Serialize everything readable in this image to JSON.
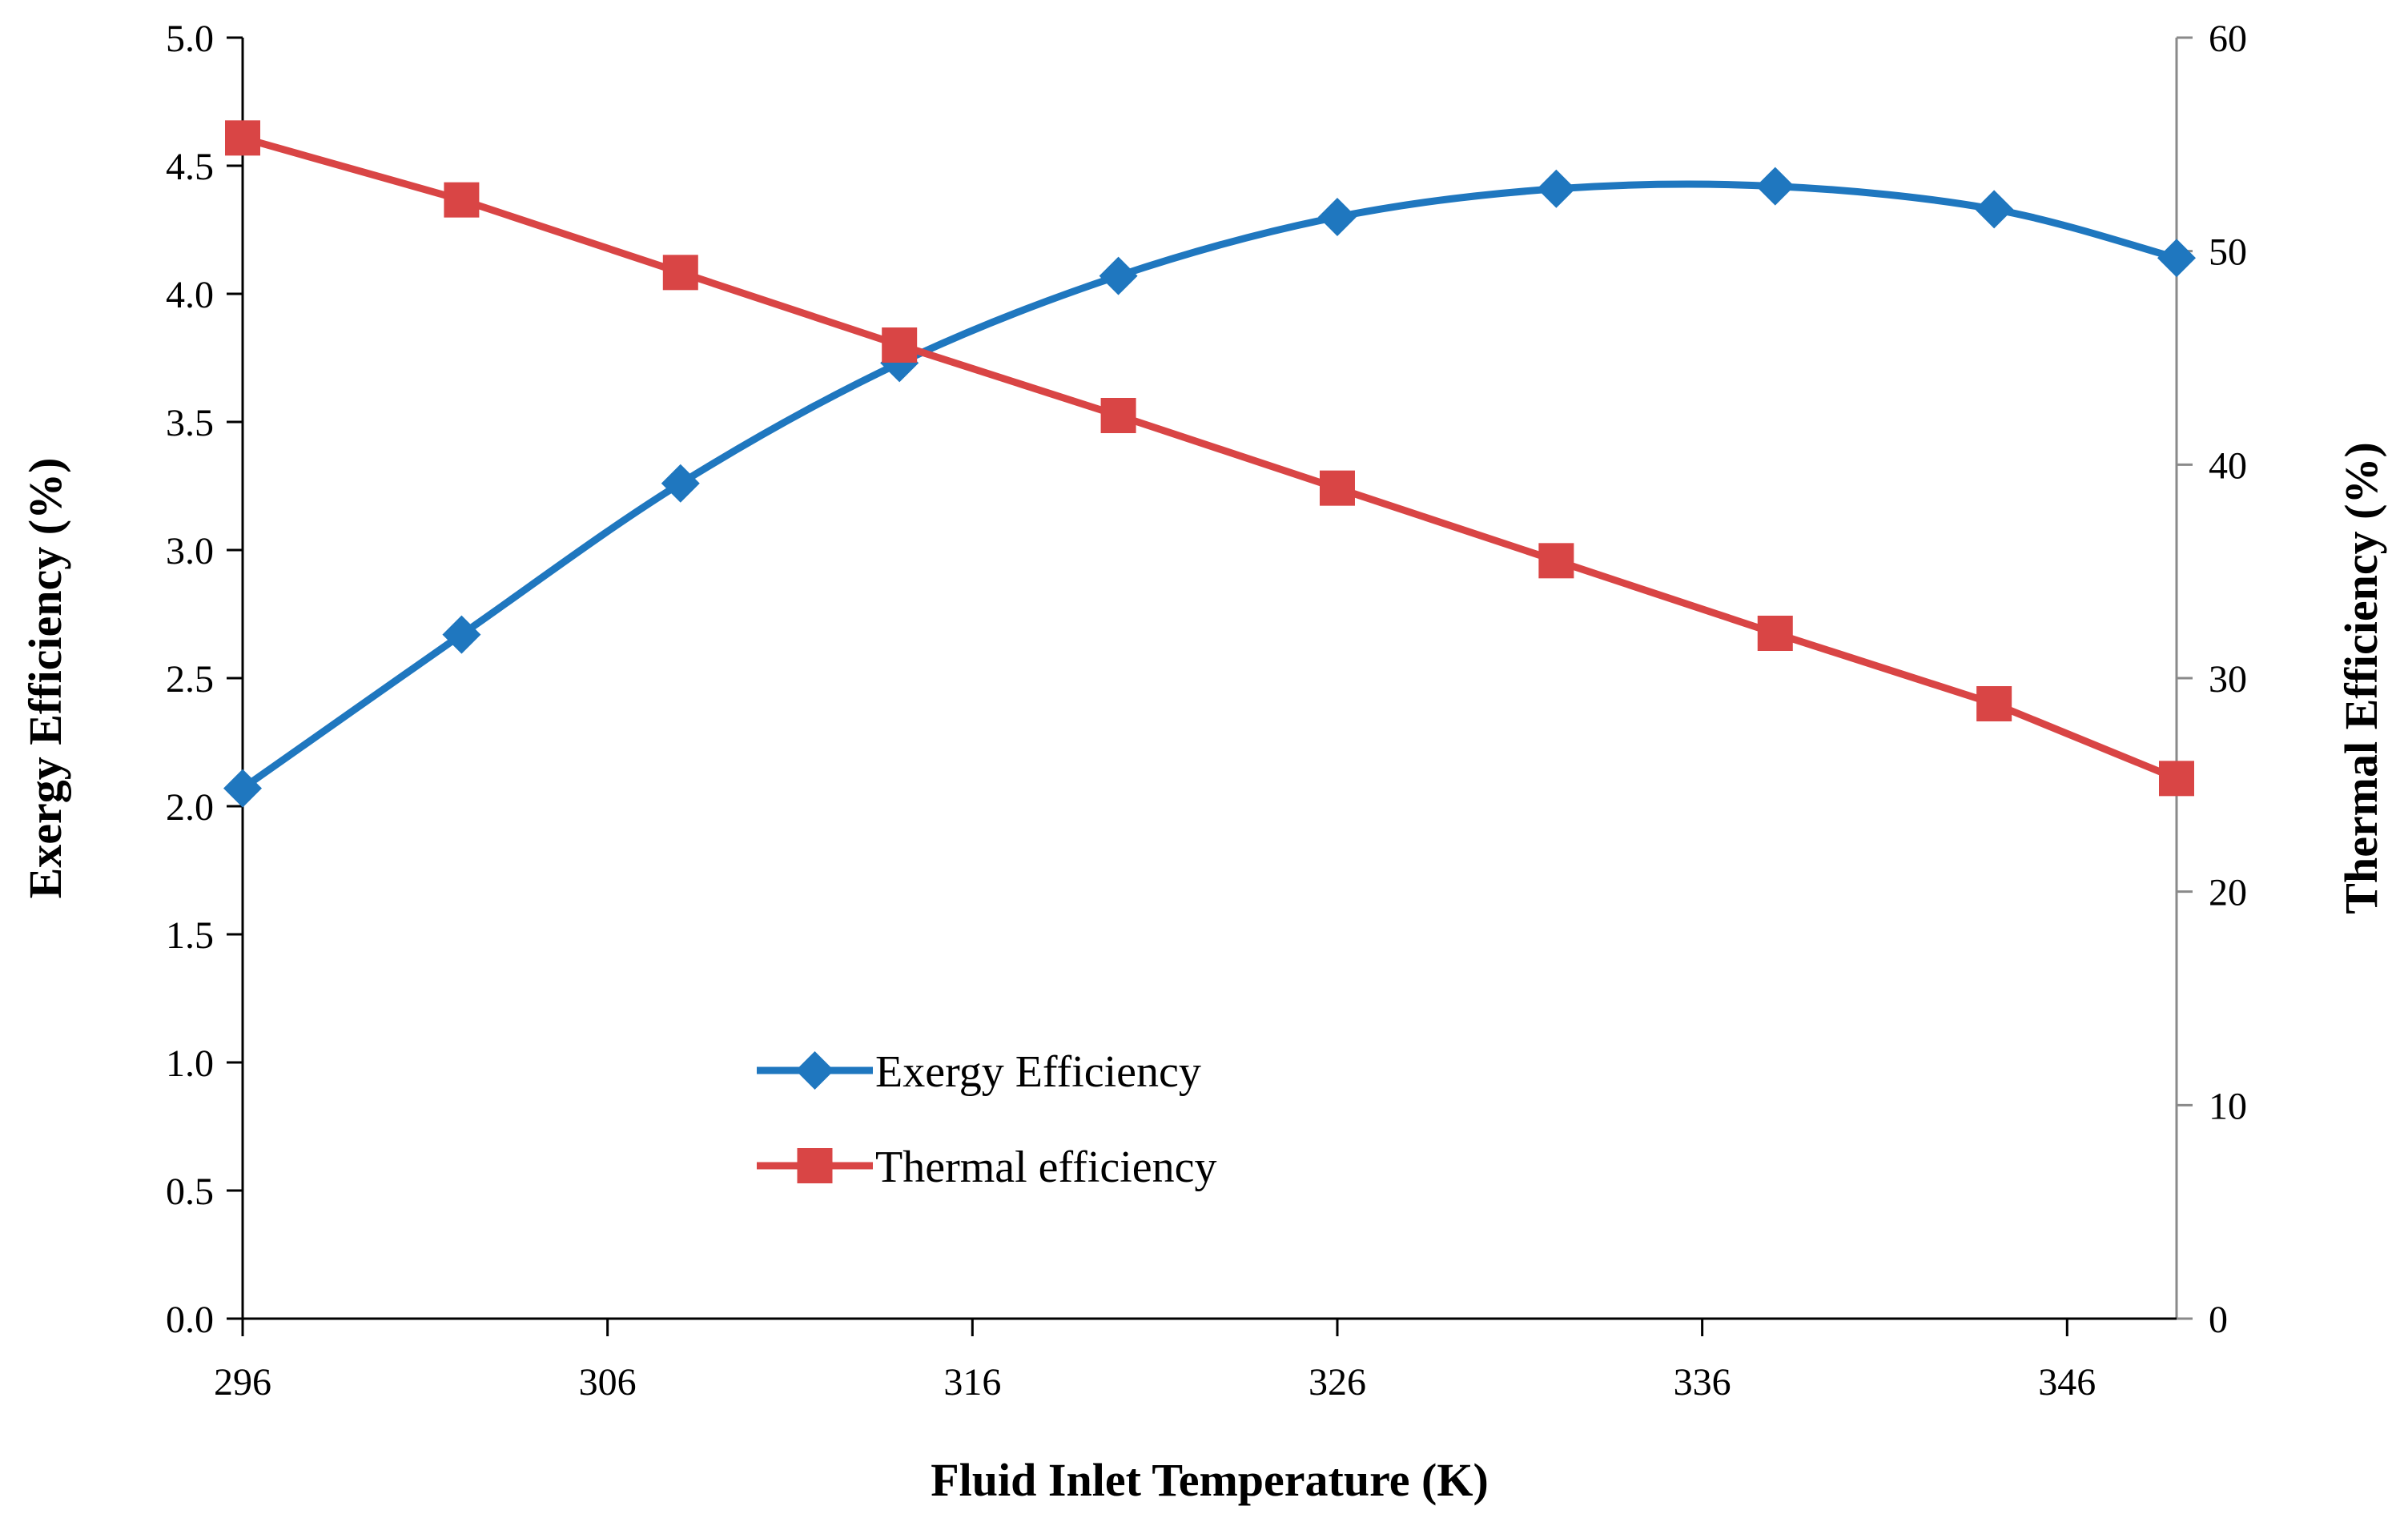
{
  "chart_data": {
    "type": "line",
    "title": "",
    "xlabel": "Fluid Inlet Temperature (K)",
    "ylabel": "Exergy Efficiency (%)",
    "y2label": "Thermal Efficiency (%)",
    "xlim": [
      296,
      349
    ],
    "ylim": [
      0,
      5
    ],
    "y2lim": [
      0,
      60
    ],
    "xticks": [
      "296",
      "306",
      "316",
      "326",
      "336",
      "346"
    ],
    "yticks": [
      "0.0",
      "0.5",
      "1.0",
      "1.5",
      "2.0",
      "2.5",
      "3.0",
      "3.5",
      "4.0",
      "4.5",
      "5.0"
    ],
    "y2ticks": [
      "0",
      "10",
      "20",
      "30",
      "40",
      "50",
      "60"
    ],
    "grid": false,
    "legend_position": "bottom-center",
    "series": [
      {
        "name": "Exergy Efficiency",
        "axis": "left",
        "color": "#1f77bf",
        "marker": "diamond",
        "x": [
          296,
          302,
          308,
          314,
          320,
          326,
          332,
          338,
          344,
          349
        ],
        "values": [
          2.07,
          2.67,
          3.26,
          3.73,
          4.07,
          4.3,
          4.41,
          4.42,
          4.33,
          4.14
        ]
      },
      {
        "name": "Thermal efficiency",
        "axis": "right",
        "color": "#d94545",
        "marker": "square",
        "x": [
          296,
          302,
          308,
          314,
          320,
          326,
          332,
          338,
          344,
          349
        ],
        "values": [
          55.3,
          52.4,
          49.0,
          45.6,
          42.3,
          38.9,
          35.5,
          32.1,
          28.8,
          25.3
        ]
      }
    ]
  }
}
